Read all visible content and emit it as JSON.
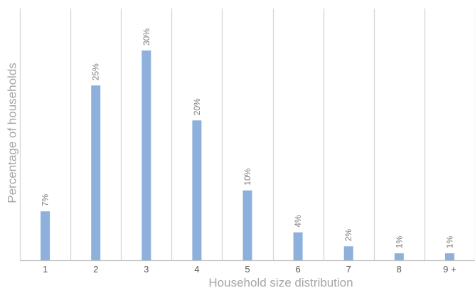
{
  "chart_data": {
    "type": "bar",
    "title": "",
    "xlabel": "Household size distribution",
    "ylabel": "Percentage of households",
    "categories": [
      "1",
      "2",
      "3",
      "4",
      "5",
      "6",
      "7",
      "8",
      "9 +"
    ],
    "values": [
      7,
      25,
      30,
      20,
      10,
      4,
      2,
      1,
      1
    ],
    "data_labels": [
      "7%",
      "25%",
      "30%",
      "20%",
      "10%",
      "4%",
      "2%",
      "1%",
      "1%"
    ],
    "ylim": [
      0,
      36
    ],
    "y_axis_visible": false,
    "grid": "vertical",
    "legend": "none",
    "colors": {
      "bar": "#8eb0dd",
      "grid": "#d6d6d6",
      "axis": "#bfbfbf",
      "text": "#595959",
      "label_text": "#7f7f7f",
      "title_text": "#a6a6a6"
    }
  }
}
